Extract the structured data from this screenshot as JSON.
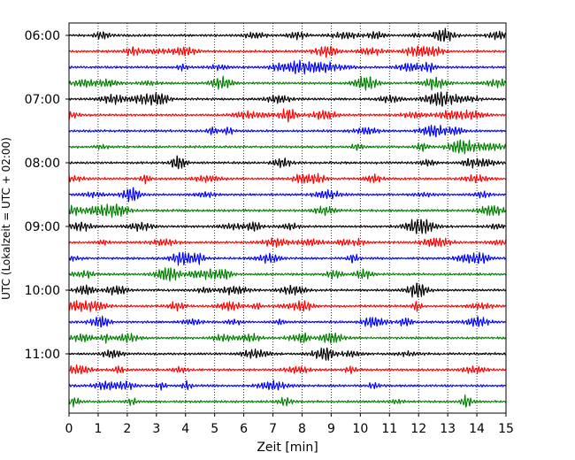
{
  "chart_data": {
    "type": "line",
    "title": "",
    "xlabel": "Zeit  [min]",
    "ylabel": "UTC (Lokalzeit = UTC + 02:00)",
    "xlim": [
      0,
      15
    ],
    "x_ticks": [
      "0",
      "1",
      "2",
      "3",
      "4",
      "5",
      "6",
      "7",
      "8",
      "9",
      "10",
      "11",
      "12",
      "13",
      "14",
      "15"
    ],
    "y_ticks": [
      "06:00",
      "07:00",
      "08:00",
      "09:00",
      "10:00",
      "11:00"
    ],
    "grid": "vertical dotted at each minute",
    "legend": "none",
    "trace_colors": [
      "#000000",
      "#ff0000",
      "#0000ff",
      "#008000"
    ],
    "series": [
      {
        "start": "06:00",
        "color": "#000000"
      },
      {
        "start": "06:15",
        "color": "#ff0000"
      },
      {
        "start": "06:30",
        "color": "#0000ff"
      },
      {
        "start": "06:45",
        "color": "#008000"
      },
      {
        "start": "07:00",
        "color": "#000000"
      },
      {
        "start": "07:15",
        "color": "#ff0000"
      },
      {
        "start": "07:30",
        "color": "#0000ff"
      },
      {
        "start": "07:45",
        "color": "#008000"
      },
      {
        "start": "08:00",
        "color": "#000000"
      },
      {
        "start": "08:15",
        "color": "#ff0000"
      },
      {
        "start": "08:30",
        "color": "#0000ff"
      },
      {
        "start": "08:45",
        "color": "#008000"
      },
      {
        "start": "09:00",
        "color": "#000000"
      },
      {
        "start": "09:15",
        "color": "#ff0000"
      },
      {
        "start": "09:30",
        "color": "#0000ff"
      },
      {
        "start": "09:45",
        "color": "#008000"
      },
      {
        "start": "10:00",
        "color": "#000000"
      },
      {
        "start": "10:15",
        "color": "#ff0000"
      },
      {
        "start": "10:30",
        "color": "#0000ff"
      },
      {
        "start": "10:45",
        "color": "#008000"
      },
      {
        "start": "11:00",
        "color": "#000000"
      },
      {
        "start": "11:15",
        "color": "#ff0000"
      },
      {
        "start": "11:30",
        "color": "#0000ff"
      },
      {
        "start": "11:45",
        "color": "#008000"
      }
    ]
  }
}
